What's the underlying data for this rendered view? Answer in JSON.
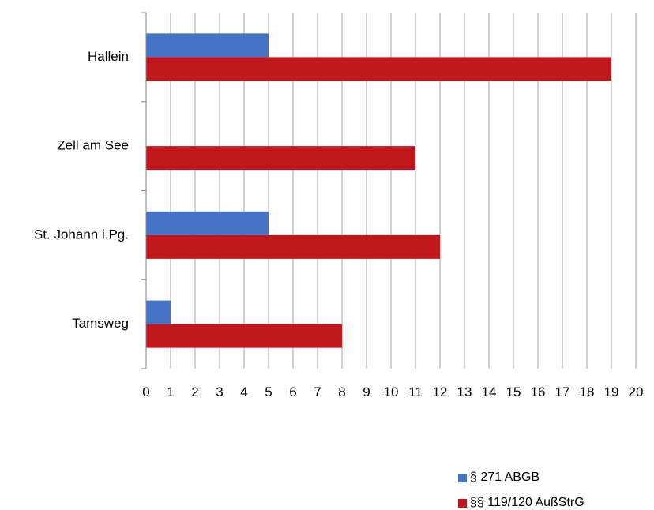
{
  "chart_data": {
    "type": "bar",
    "orientation": "horizontal",
    "categories": [
      "Hallein",
      "Zell am See",
      "St. Johann i.Pg.",
      "Tamsweg"
    ],
    "series": [
      {
        "name": "§ 271 ABGB",
        "values": [
          5,
          0,
          5,
          1
        ],
        "color": "#4472C4"
      },
      {
        "name": "§§ 119/120 AußStrG",
        "values": [
          19,
          11,
          12,
          8
        ],
        "color": "#C0171D"
      }
    ],
    "xlim": [
      0,
      20
    ],
    "xticks": [
      "0",
      "1",
      "2",
      "3",
      "4",
      "5",
      "6",
      "7",
      "8",
      "9",
      "10",
      "11",
      "12",
      "13",
      "14",
      "15",
      "16",
      "17",
      "18",
      "19",
      "20"
    ],
    "grid": "vertical",
    "legend_position": "bottom-right"
  }
}
